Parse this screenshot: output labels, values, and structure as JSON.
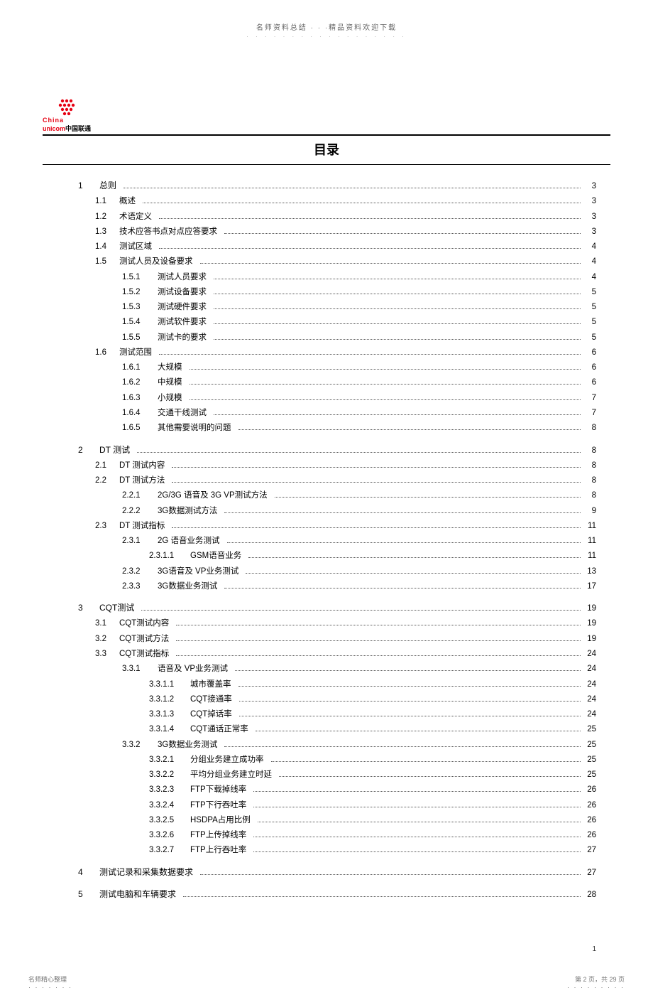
{
  "header": {
    "topText": "名师资料总结 · · ·精品资料欢迎下载",
    "dots": "· · · · · · · · · · · · · · · · · ·"
  },
  "logo": {
    "line1": "China",
    "line2_red": "unicom",
    "line2_black": "中国联通"
  },
  "title": "目录",
  "toc": [
    {
      "lvl": 0,
      "num": "1",
      "label": "总则",
      "page": "3",
      "spaced": false
    },
    {
      "lvl": 1,
      "num": "1.1",
      "label": "概述",
      "page": "3"
    },
    {
      "lvl": 1,
      "num": "1.2",
      "label": "术语定义",
      "page": "3"
    },
    {
      "lvl": 1,
      "num": "1.3",
      "label": "技术应答书点对点应答要求",
      "page": "3"
    },
    {
      "lvl": 1,
      "num": "1.4",
      "label": "测试区域",
      "page": "4"
    },
    {
      "lvl": 1,
      "num": "1.5",
      "label": "测试人员及设备要求",
      "page": "4"
    },
    {
      "lvl": 2,
      "num": "1.5.1",
      "label": "测试人员要求",
      "page": "4"
    },
    {
      "lvl": 2,
      "num": "1.5.2",
      "label": "测试设备要求",
      "page": "5"
    },
    {
      "lvl": 2,
      "num": "1.5.3",
      "label": "测试硬件要求",
      "page": "5"
    },
    {
      "lvl": 2,
      "num": "1.5.4",
      "label": "测试软件要求",
      "page": "5"
    },
    {
      "lvl": 2,
      "num": "1.5.5",
      "label": "测试卡的要求",
      "page": "5"
    },
    {
      "lvl": 1,
      "num": "1.6",
      "label": "测试范围",
      "page": "6"
    },
    {
      "lvl": 2,
      "num": "1.6.1",
      "label": "大规模",
      "page": "6"
    },
    {
      "lvl": 2,
      "num": "1.6.2",
      "label": "中规模",
      "page": "6"
    },
    {
      "lvl": 2,
      "num": "1.6.3",
      "label": "小规模",
      "page": "7"
    },
    {
      "lvl": 2,
      "num": "1.6.4",
      "label": "交通干线测试",
      "page": "7"
    },
    {
      "lvl": 2,
      "num": "1.6.5",
      "label": "其他需要说明的问题",
      "page": "8"
    },
    {
      "lvl": 0,
      "num": "2",
      "label": "DT 测试",
      "page": "8",
      "spaced": true
    },
    {
      "lvl": 1,
      "num": "2.1",
      "label": "DT 测试内容",
      "page": "8"
    },
    {
      "lvl": 1,
      "num": "2.2",
      "label": "DT 测试方法",
      "page": "8"
    },
    {
      "lvl": 2,
      "num": "2.2.1",
      "label": "2G/3G 语音及 3G VP测试方法",
      "page": "8"
    },
    {
      "lvl": 2,
      "num": "2.2.2",
      "label": "3G数据测试方法",
      "page": "9"
    },
    {
      "lvl": 1,
      "num": "2.3",
      "label": "DT 测试指标",
      "page": "11"
    },
    {
      "lvl": 2,
      "num": "2.3.1",
      "label": "2G 语音业务测试",
      "page": "11"
    },
    {
      "lvl": 3,
      "num": "2.3.1.1",
      "label": "GSM语音业务",
      "page": "11"
    },
    {
      "lvl": 2,
      "num": "2.3.2",
      "label": "3G语音及 VP业务测试",
      "page": "13"
    },
    {
      "lvl": 2,
      "num": "2.3.3",
      "label": "3G数据业务测试",
      "page": "17"
    },
    {
      "lvl": 0,
      "num": "3",
      "label": "CQT测试",
      "page": "19",
      "spaced": true
    },
    {
      "lvl": 1,
      "num": "3.1",
      "label": "CQT测试内容",
      "page": "19"
    },
    {
      "lvl": 1,
      "num": "3.2",
      "label": "CQT测试方法",
      "page": "19"
    },
    {
      "lvl": 1,
      "num": "3.3",
      "label": "CQT测试指标",
      "page": "24"
    },
    {
      "lvl": 2,
      "num": "3.3.1",
      "label": "语音及 VP业务测试",
      "page": "24"
    },
    {
      "lvl": 3,
      "num": "3.3.1.1",
      "label": "城市覆盖率",
      "page": "24"
    },
    {
      "lvl": 3,
      "num": "3.3.1.2",
      "label": "CQT接通率",
      "page": "24"
    },
    {
      "lvl": 3,
      "num": "3.3.1.3",
      "label": "CQT掉话率",
      "page": "24"
    },
    {
      "lvl": 3,
      "num": "3.3.1.4",
      "label": "CQT通话正常率",
      "page": "25"
    },
    {
      "lvl": 2,
      "num": "3.3.2",
      "label": "3G数据业务测试",
      "page": "25"
    },
    {
      "lvl": 3,
      "num": "3.3.2.1",
      "label": "分组业务建立成功率",
      "page": "25"
    },
    {
      "lvl": 3,
      "num": "3.3.2.2",
      "label": "平均分组业务建立时延",
      "page": "25"
    },
    {
      "lvl": 3,
      "num": "3.3.2.3",
      "label": "FTP下载掉线率",
      "page": "26"
    },
    {
      "lvl": 3,
      "num": "3.3.2.4",
      "label": "FTP下行吞吐率",
      "page": "26"
    },
    {
      "lvl": 3,
      "num": "3.3.2.5",
      "label": "HSDPA占用比例",
      "page": "26"
    },
    {
      "lvl": 3,
      "num": "3.3.2.6",
      "label": "FTP上传掉线率",
      "page": "26"
    },
    {
      "lvl": 3,
      "num": "3.3.2.7",
      "label": "FTP上行吞吐率",
      "page": "27"
    },
    {
      "lvl": 0,
      "num": "4",
      "label": "测试记录和采集数据要求",
      "page": "27",
      "spaced": true
    },
    {
      "lvl": 0,
      "num": "5",
      "label": "测试电脑和车辆要求",
      "page": "28",
      "spaced": true
    }
  ],
  "pageSideNum": "1",
  "footer": {
    "left": "名师精心整理",
    "leftDots": "· · · · · · ·",
    "right": "第 2 页，共 29 页",
    "rightDots": "· · · · · · · · ·"
  }
}
